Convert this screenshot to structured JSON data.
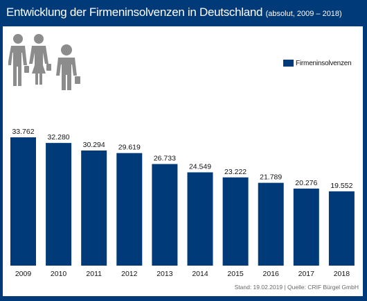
{
  "title": "Entwicklung der Firmeninsolvenzen in Deutschland",
  "subtitle": "(absolut, 2009 – 2018)",
  "legend": {
    "label": "Firmeninsolvenzen"
  },
  "source": "Stand: 19.02.2019 | Quelle: CRIF Bürgel GmbH",
  "colors": {
    "background": "#003a78",
    "bar": "#003a78",
    "panel": "#ffffff",
    "icon": "#8c8c8c"
  },
  "icons": [
    "businessman-icon",
    "businesswoman-icon",
    "businessman-icon"
  ],
  "chart_data": {
    "type": "bar",
    "title": "Entwicklung der Firmeninsolvenzen in Deutschland",
    "subtitle": "(absolut, 2009 – 2018)",
    "categories": [
      "2009",
      "2010",
      "2011",
      "2012",
      "2013",
      "2014",
      "2015",
      "2016",
      "2017",
      "2018"
    ],
    "series": [
      {
        "name": "Firmeninsolvenzen",
        "values": [
          33762,
          32280,
          30294,
          29619,
          26733,
          24549,
          23222,
          21789,
          20276,
          19552
        ],
        "labels": [
          "33.762",
          "32.280",
          "30.294",
          "29.619",
          "26.733",
          "24.549",
          "23.222",
          "21.789",
          "20.276",
          "19.552"
        ]
      }
    ],
    "ylim": [
      0,
      35000
    ],
    "grid": false,
    "legend_position": "top-right"
  }
}
